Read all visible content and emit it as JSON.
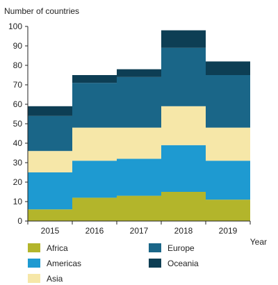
{
  "chart_data": {
    "type": "bar",
    "stacked": true,
    "title": "",
    "ylabel": "Number of countries",
    "xlabel": "Year",
    "categories": [
      "2015",
      "2016",
      "2017",
      "2018",
      "2019"
    ],
    "ylim": [
      0,
      100
    ],
    "yticks": [
      0,
      10,
      20,
      30,
      40,
      50,
      60,
      70,
      80,
      90,
      100
    ],
    "grid": false,
    "legend_position": "bottom",
    "series": [
      {
        "name": "Africa",
        "color": "#b3b52b",
        "values": [
          6,
          12,
          13,
          15,
          11
        ]
      },
      {
        "name": "Americas",
        "color": "#1e9ad1",
        "values": [
          19,
          19,
          19,
          24,
          20
        ]
      },
      {
        "name": "Asia",
        "color": "#f6e7a8",
        "values": [
          11,
          17,
          16,
          20,
          17
        ]
      },
      {
        "name": "Europe",
        "color": "#1a6688",
        "values": [
          18,
          23,
          26,
          30,
          27
        ]
      },
      {
        "name": "Oceania",
        "color": "#0d3e54",
        "values": [
          5,
          4,
          4,
          9,
          7
        ]
      }
    ]
  }
}
